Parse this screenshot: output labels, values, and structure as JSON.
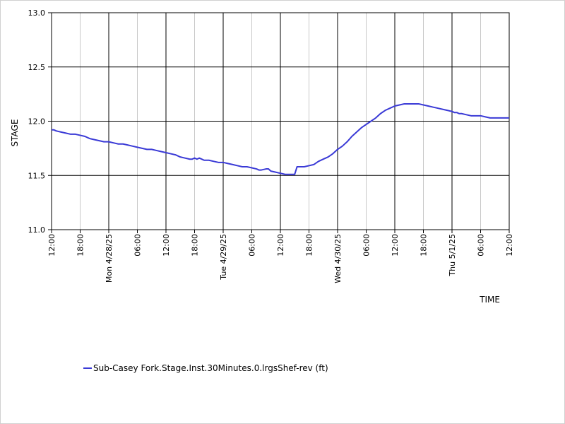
{
  "chart_data": {
    "type": "line",
    "title": "",
    "xlabel": "TIME",
    "ylabel": "STAGE",
    "ylim": [
      11.0,
      13.0
    ],
    "y_ticks": [
      "11.0",
      "11.5",
      "12.0",
      "12.5",
      "13.0"
    ],
    "x_range_hours": [
      0,
      96
    ],
    "x_ticks": [
      {
        "hour": 0,
        "label": "12:00",
        "major": true
      },
      {
        "hour": 6,
        "label": "18:00",
        "major": false
      },
      {
        "hour": 12,
        "label": "Mon 4/28/25",
        "major": true
      },
      {
        "hour": 18,
        "label": "06:00",
        "major": false
      },
      {
        "hour": 24,
        "label": "12:00",
        "major": true
      },
      {
        "hour": 30,
        "label": "18:00",
        "major": false
      },
      {
        "hour": 36,
        "label": "Tue 4/29/25",
        "major": true
      },
      {
        "hour": 42,
        "label": "06:00",
        "major": false
      },
      {
        "hour": 48,
        "label": "12:00",
        "major": true
      },
      {
        "hour": 54,
        "label": "18:00",
        "major": false
      },
      {
        "hour": 60,
        "label": "Wed 4/30/25",
        "major": true
      },
      {
        "hour": 66,
        "label": "06:00",
        "major": false
      },
      {
        "hour": 72,
        "label": "12:00",
        "major": true
      },
      {
        "hour": 78,
        "label": "18:00",
        "major": false
      },
      {
        "hour": 84,
        "label": "Thu 5/1/25",
        "major": true
      },
      {
        "hour": 90,
        "label": "06:00",
        "major": false
      },
      {
        "hour": 96,
        "label": "12:00",
        "major": true
      }
    ],
    "grid": true,
    "legend_position": "bottom",
    "series": [
      {
        "name": "Sub-Casey Fork.Stage.Inst.30Minutes.0.lrgsShef-rev (ft)",
        "color": "#3a3ad6",
        "points": [
          [
            0.0,
            11.92
          ],
          [
            0.5,
            11.92
          ],
          [
            1.0,
            11.91
          ],
          [
            2.0,
            11.9
          ],
          [
            3.0,
            11.89
          ],
          [
            4.0,
            11.88
          ],
          [
            5.0,
            11.88
          ],
          [
            6.0,
            11.87
          ],
          [
            7.0,
            11.86
          ],
          [
            8.0,
            11.84
          ],
          [
            9.0,
            11.83
          ],
          [
            10.0,
            11.82
          ],
          [
            11.0,
            11.81
          ],
          [
            12.0,
            11.81
          ],
          [
            13.0,
            11.8
          ],
          [
            14.0,
            11.79
          ],
          [
            15.0,
            11.79
          ],
          [
            16.0,
            11.78
          ],
          [
            17.0,
            11.77
          ],
          [
            18.0,
            11.76
          ],
          [
            19.0,
            11.75
          ],
          [
            20.0,
            11.74
          ],
          [
            21.0,
            11.74
          ],
          [
            22.0,
            11.73
          ],
          [
            23.0,
            11.72
          ],
          [
            24.0,
            11.71
          ],
          [
            25.0,
            11.7
          ],
          [
            26.0,
            11.69
          ],
          [
            27.0,
            11.67
          ],
          [
            28.0,
            11.66
          ],
          [
            29.0,
            11.65
          ],
          [
            29.5,
            11.65
          ],
          [
            30.0,
            11.66
          ],
          [
            30.5,
            11.65
          ],
          [
            31.0,
            11.66
          ],
          [
            31.5,
            11.65
          ],
          [
            32.0,
            11.64
          ],
          [
            33.0,
            11.64
          ],
          [
            34.0,
            11.63
          ],
          [
            35.0,
            11.62
          ],
          [
            36.0,
            11.62
          ],
          [
            37.0,
            11.61
          ],
          [
            38.0,
            11.6
          ],
          [
            39.0,
            11.59
          ],
          [
            40.0,
            11.58
          ],
          [
            41.0,
            11.58
          ],
          [
            42.0,
            11.57
          ],
          [
            43.0,
            11.56
          ],
          [
            43.5,
            11.55
          ],
          [
            44.0,
            11.55
          ],
          [
            45.0,
            11.56
          ],
          [
            45.5,
            11.56
          ],
          [
            46.0,
            11.54
          ],
          [
            47.0,
            11.53
          ],
          [
            48.0,
            11.52
          ],
          [
            49.0,
            11.51
          ],
          [
            50.0,
            11.51
          ],
          [
            51.0,
            11.51
          ],
          [
            51.5,
            11.58
          ],
          [
            52.0,
            11.58
          ],
          [
            53.0,
            11.58
          ],
          [
            54.0,
            11.59
          ],
          [
            55.0,
            11.6
          ],
          [
            56.0,
            11.63
          ],
          [
            57.0,
            11.65
          ],
          [
            58.0,
            11.67
          ],
          [
            59.0,
            11.7
          ],
          [
            60.0,
            11.74
          ],
          [
            61.0,
            11.77
          ],
          [
            62.0,
            11.81
          ],
          [
            63.0,
            11.86
          ],
          [
            64.0,
            11.9
          ],
          [
            65.0,
            11.94
          ],
          [
            66.0,
            11.97
          ],
          [
            67.0,
            12.0
          ],
          [
            68.0,
            12.03
          ],
          [
            69.0,
            12.07
          ],
          [
            70.0,
            12.1
          ],
          [
            71.0,
            12.12
          ],
          [
            72.0,
            12.14
          ],
          [
            73.0,
            12.15
          ],
          [
            74.0,
            12.16
          ],
          [
            75.0,
            12.16
          ],
          [
            76.0,
            12.16
          ],
          [
            77.0,
            12.16
          ],
          [
            78.0,
            12.15
          ],
          [
            79.0,
            12.14
          ],
          [
            80.0,
            12.13
          ],
          [
            81.0,
            12.12
          ],
          [
            82.0,
            12.11
          ],
          [
            83.0,
            12.1
          ],
          [
            84.0,
            12.09
          ],
          [
            84.5,
            12.08
          ],
          [
            85.0,
            12.08
          ],
          [
            85.5,
            12.07
          ],
          [
            86.0,
            12.07
          ],
          [
            87.0,
            12.06
          ],
          [
            88.0,
            12.05
          ],
          [
            89.0,
            12.05
          ],
          [
            90.0,
            12.05
          ],
          [
            91.0,
            12.04
          ],
          [
            92.0,
            12.03
          ],
          [
            93.0,
            12.03
          ],
          [
            94.0,
            12.03
          ],
          [
            95.0,
            12.03
          ],
          [
            96.0,
            12.03
          ]
        ]
      }
    ]
  }
}
